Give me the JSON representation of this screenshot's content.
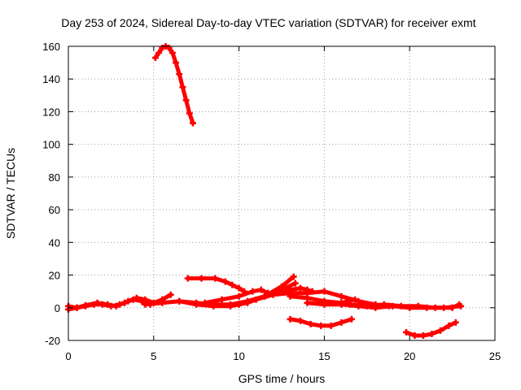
{
  "chart_data": {
    "type": "scatter",
    "title": "Day 253 of 2024, Sidereal Day-to-day VTEC variation (SDTVAR) for receiver exmt",
    "xlabel": "GPS time / hours",
    "ylabel": "SDTVAR / TECUs",
    "xlim": [
      0,
      25
    ],
    "ylim": [
      -20,
      160
    ],
    "xticks": [
      0,
      5,
      10,
      15,
      20,
      25
    ],
    "yticks": [
      -20,
      0,
      20,
      40,
      60,
      80,
      100,
      120,
      140,
      160
    ],
    "grid": true,
    "color": "#ff0000",
    "series": [
      {
        "name": "arc-1",
        "points": [
          [
            5.1,
            153
          ],
          [
            5.3,
            156
          ],
          [
            5.5,
            159
          ],
          [
            5.7,
            160
          ],
          [
            5.9,
            159
          ],
          [
            6.1,
            156
          ],
          [
            6.3,
            150
          ],
          [
            6.5,
            143
          ],
          [
            6.7,
            135
          ],
          [
            6.9,
            127
          ],
          [
            7.1,
            119
          ],
          [
            7.3,
            113
          ]
        ]
      },
      {
        "name": "arc-2",
        "points": [
          [
            0,
            -1
          ],
          [
            0.5,
            0
          ],
          [
            1,
            1
          ],
          [
            1.5,
            2
          ],
          [
            2,
            2
          ],
          [
            2.5,
            1
          ],
          [
            3,
            2
          ],
          [
            3.5,
            4
          ],
          [
            4,
            6
          ],
          [
            4.5,
            5
          ],
          [
            5,
            3
          ],
          [
            5.5,
            5
          ],
          [
            6,
            8
          ]
        ]
      },
      {
        "name": "arc-3",
        "points": [
          [
            0,
            1
          ],
          [
            0.5,
            0
          ],
          [
            1,
            1.5
          ],
          [
            1.7,
            3
          ],
          [
            2.3,
            2
          ],
          [
            2.8,
            1
          ],
          [
            3.3,
            3
          ],
          [
            3.8,
            5
          ],
          [
            4.3,
            4
          ],
          [
            4.8,
            2
          ]
        ]
      },
      {
        "name": "arc-4",
        "points": [
          [
            4.5,
            2
          ],
          [
            5.5,
            3
          ],
          [
            6.5,
            4
          ],
          [
            7.5,
            3
          ],
          [
            8.5,
            2
          ],
          [
            9.5,
            2
          ],
          [
            10.5,
            4
          ],
          [
            11.5,
            7
          ],
          [
            12.5,
            11
          ],
          [
            13.3,
            15
          ]
        ]
      },
      {
        "name": "arc-5",
        "points": [
          [
            6.5,
            4
          ],
          [
            7.5,
            2
          ],
          [
            8.5,
            1
          ],
          [
            9.5,
            1
          ],
          [
            10.5,
            3
          ],
          [
            11.5,
            7
          ],
          [
            12.5,
            13
          ],
          [
            13.2,
            19
          ]
        ]
      },
      {
        "name": "arc-6",
        "points": [
          [
            7.0,
            18
          ],
          [
            7.8,
            18
          ],
          [
            8.6,
            18
          ],
          [
            9.2,
            16
          ],
          [
            9.6,
            14
          ],
          [
            10.0,
            12
          ],
          [
            10.3,
            10
          ]
        ]
      },
      {
        "name": "arc-7",
        "points": [
          [
            8.0,
            3
          ],
          [
            9.0,
            5
          ],
          [
            10.0,
            7
          ],
          [
            10.8,
            10
          ],
          [
            11.3,
            11
          ],
          [
            11.7,
            9
          ]
        ]
      },
      {
        "name": "arc-8",
        "points": [
          [
            10.0,
            2
          ],
          [
            11.0,
            5
          ],
          [
            12.0,
            8
          ],
          [
            13.0,
            9
          ],
          [
            14.0,
            9
          ],
          [
            15.0,
            10
          ],
          [
            16.0,
            7
          ],
          [
            17.0,
            4
          ],
          [
            18.0,
            2
          ],
          [
            18.8,
            1
          ]
        ]
      },
      {
        "name": "arc-9",
        "points": [
          [
            12.0,
            9
          ],
          [
            13.0,
            11
          ],
          [
            13.6,
            12
          ],
          [
            14.0,
            11
          ],
          [
            14.3,
            10
          ]
        ]
      },
      {
        "name": "arc-10",
        "points": [
          [
            13.0,
            7
          ],
          [
            14.0,
            6
          ],
          [
            15.0,
            4
          ],
          [
            16.0,
            3
          ],
          [
            16.8,
            5
          ]
        ]
      },
      {
        "name": "arc-11",
        "points": [
          [
            14.0,
            3
          ],
          [
            15.0,
            2
          ],
          [
            16.0,
            2
          ],
          [
            17.0,
            1
          ],
          [
            18.0,
            0
          ],
          [
            19.0,
            1
          ],
          [
            20.0,
            0
          ],
          [
            21.0,
            0
          ],
          [
            22.0,
            0
          ],
          [
            23.0,
            1
          ]
        ]
      },
      {
        "name": "arc-12",
        "points": [
          [
            16.5,
            2
          ],
          [
            17.5,
            1
          ],
          [
            18.5,
            2
          ],
          [
            19.5,
            1
          ],
          [
            20.5,
            1
          ],
          [
            21.5,
            0
          ],
          [
            22.5,
            0
          ],
          [
            22.9,
            2
          ]
        ]
      },
      {
        "name": "arc-13",
        "points": [
          [
            13.0,
            -7
          ],
          [
            13.6,
            -8
          ],
          [
            14.2,
            -10
          ],
          [
            14.8,
            -11
          ],
          [
            15.4,
            -11
          ],
          [
            16.0,
            -9
          ],
          [
            16.6,
            -7
          ]
        ]
      },
      {
        "name": "arc-14",
        "points": [
          [
            19.8,
            -15
          ],
          [
            20.3,
            -17
          ],
          [
            20.8,
            -17
          ],
          [
            21.3,
            -16
          ],
          [
            21.8,
            -14
          ],
          [
            22.3,
            -11
          ],
          [
            22.7,
            -9
          ]
        ]
      }
    ]
  }
}
